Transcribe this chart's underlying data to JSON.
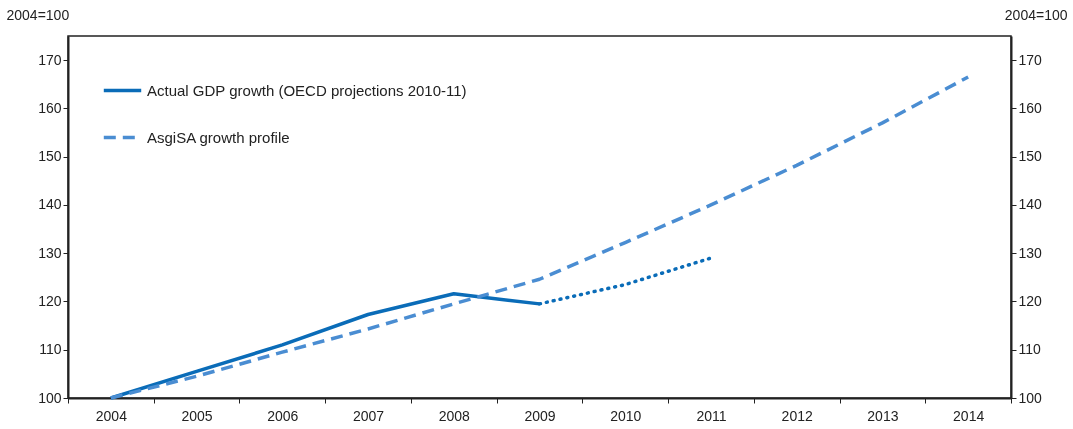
{
  "chart_data": {
    "type": "line",
    "ylabel": "2004=100",
    "y2label": "2004=100",
    "categories": [
      "2004",
      "2005",
      "2006",
      "2007",
      "2008",
      "2009",
      "2010",
      "2011",
      "2012",
      "2013",
      "2014"
    ],
    "series": [
      {
        "name": "Actual GDP growth (OECD projections 2010-11)",
        "color": "#0a6cb8",
        "line_style": "solid",
        "values": [
          100,
          105.5,
          111,
          117.3,
          121.6,
          119.5,
          null,
          null,
          null,
          null,
          null
        ]
      },
      {
        "color": "#0a6cb8",
        "line_style": "dotted",
        "values": [
          null,
          null,
          null,
          null,
          null,
          119.5,
          123.5,
          129,
          null,
          null,
          null
        ]
      },
      {
        "name": "AsgiSA growth profile",
        "color": "#4a8dd2",
        "line_style": "dashed",
        "values": [
          100,
          104.5,
          109.5,
          114.3,
          119.5,
          124.6,
          132.2,
          140,
          148.2,
          157,
          166.5
        ]
      }
    ],
    "ylim": [
      100,
      175
    ],
    "yticks": [
      100,
      110,
      120,
      130,
      140,
      150,
      160,
      170
    ],
    "y2lim": [
      100,
      175
    ],
    "y2ticks": [
      100,
      110,
      120,
      130,
      140,
      150,
      160,
      170
    ],
    "grid": false,
    "legend": "top left"
  }
}
